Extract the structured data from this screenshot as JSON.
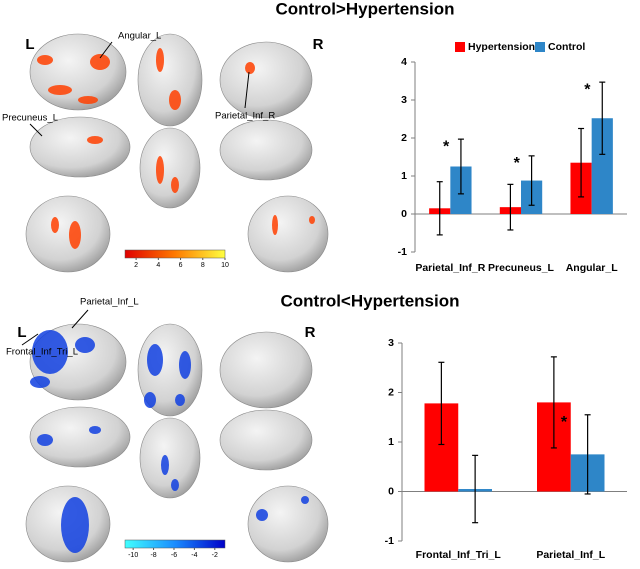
{
  "brain_panels": [
    {
      "title": "Control>Hypertension",
      "side_labels": [
        "L",
        "R"
      ],
      "region_labels": [
        "Angular_L",
        "Precuneus_L",
        "Parietal_Inf_R"
      ],
      "colorbar": {
        "lim": [
          1,
          10
        ],
        "ticks": [
          2,
          4,
          6,
          8,
          10
        ]
      }
    },
    {
      "title": "Control<Hypertension",
      "side_labels": [
        "L",
        "R"
      ],
      "region_labels": [
        "Parietal_Inf_L",
        "Frontal_Inf_Tri_L"
      ],
      "colorbar": {
        "lim": [
          -10.8,
          -1
        ],
        "ticks": [
          -10,
          -8,
          -6,
          -4,
          -2
        ]
      }
    }
  ],
  "chart_data": [
    {
      "type": "bar",
      "categories": [
        "Parietal_Inf_R",
        "Precuneus_L",
        "Angular_L"
      ],
      "series": [
        {
          "name": "Hypertension",
          "color": "#ff0000",
          "values": [
            0.15,
            0.18,
            1.35
          ],
          "errors": [
            0.7,
            0.6,
            0.9
          ]
        },
        {
          "name": "Control",
          "color": "#2e86c8",
          "values": [
            1.25,
            0.88,
            2.52
          ],
          "errors": [
            0.72,
            0.65,
            0.95
          ]
        }
      ],
      "significance": [
        "*",
        "*",
        "*"
      ],
      "ylim": [
        -1,
        4
      ],
      "yticks": [
        -1,
        0,
        1,
        2,
        3,
        4
      ],
      "legend": "top"
    },
    {
      "type": "bar",
      "categories": [
        "Frontal_Inf_Tri_L",
        "Parietal_Inf_L"
      ],
      "series": [
        {
          "name": "Hypertension",
          "color": "#ff0000",
          "values": [
            1.78,
            1.8
          ],
          "errors": [
            0.83,
            0.92
          ]
        },
        {
          "name": "Control",
          "color": "#2e86c8",
          "values": [
            0.05,
            0.75
          ],
          "errors": [
            0.68,
            0.8
          ]
        }
      ],
      "significance": [
        null,
        "*"
      ],
      "ylim": [
        -1,
        3
      ],
      "yticks": [
        -1,
        0,
        1,
        2,
        3
      ],
      "legend": "none"
    }
  ]
}
